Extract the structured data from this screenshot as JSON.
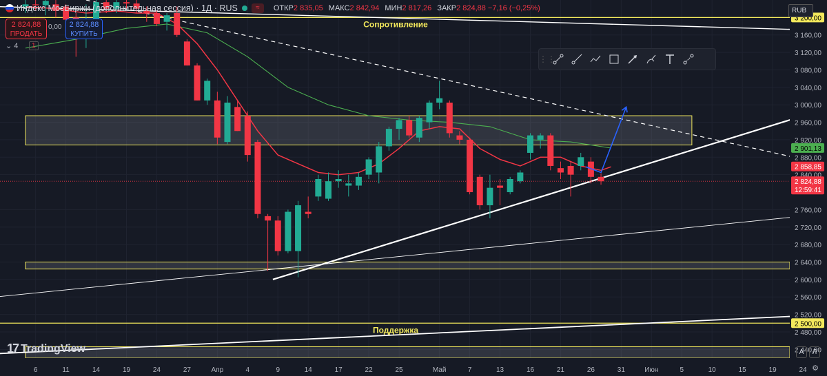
{
  "header": {
    "title": "Индекс МосБиржи (дополнительная сессия) · 1Д · RUS",
    "pill": "≈",
    "ohlc": [
      {
        "k": "ОТКР",
        "v": "2 835,05"
      },
      {
        "k": "МАКС",
        "v": "2 842,94"
      },
      {
        "k": "МИН",
        "v": "2 817,26"
      },
      {
        "k": "ЗАКР",
        "v": "2 824,88 −7,16 (−0,25%)"
      }
    ]
  },
  "trade": {
    "sell_price": "2 824,88",
    "sell_label": "ПРОДАТЬ",
    "spread": "0,00",
    "buy_price": "2 824,88",
    "buy_label": "КУПИТЬ"
  },
  "layout_count": "4",
  "layout_alert": "1",
  "currency": "RUB",
  "brand": "TradingView",
  "axis_buttons": {
    "auto": "A",
    "log": "Л"
  },
  "toolbar_icons": [
    "trend-line-icon",
    "ray-icon",
    "path-icon",
    "rectangle-icon",
    "arrow-icon",
    "brush-icon",
    "text-icon",
    "measure-icon"
  ],
  "colors": {
    "up": "#22ab94",
    "down": "#f23645",
    "ema_fast": "#f23645",
    "ema_slow": "#4caf50",
    "zone_line": "#f2e85c",
    "trend": "#ffffff",
    "arrow": "#2962ff"
  },
  "annotations": {
    "resistance": "Сопротивление",
    "support": "Поддержка"
  },
  "chart_data": {
    "type": "candlestick",
    "ylim": [
      2420,
      3240
    ],
    "y_ticks": [
      3160,
      3120,
      3080,
      3040,
      3000,
      2960,
      2920,
      2880,
      2840,
      2760,
      2720,
      2680,
      2640,
      2600,
      2560,
      2520,
      2480,
      2440
    ],
    "x_ticks": [
      {
        "label": "6",
        "i": 1
      },
      {
        "label": "11",
        "i": 4
      },
      {
        "label": "14",
        "i": 7
      },
      {
        "label": "19",
        "i": 10
      },
      {
        "label": "24",
        "i": 13
      },
      {
        "label": "27",
        "i": 16
      },
      {
        "label": "Апр",
        "i": 19
      },
      {
        "label": "4",
        "i": 22
      },
      {
        "label": "9",
        "i": 25
      },
      {
        "label": "14",
        "i": 28
      },
      {
        "label": "17",
        "i": 31
      },
      {
        "label": "22",
        "i": 34
      },
      {
        "label": "25",
        "i": 37
      },
      {
        "label": "Май",
        "i": 41
      },
      {
        "label": "7",
        "i": 44
      },
      {
        "label": "13",
        "i": 47
      },
      {
        "label": "16",
        "i": 50
      },
      {
        "label": "21",
        "i": 53
      },
      {
        "label": "26",
        "i": 56
      },
      {
        "label": "31",
        "i": 59
      },
      {
        "label": "Июн",
        "i": 62
      },
      {
        "label": "5",
        "i": 65
      },
      {
        "label": "10",
        "i": 68
      },
      {
        "label": "15",
        "i": 71
      },
      {
        "label": "19",
        "i": 74
      },
      {
        "label": "24",
        "i": 77
      }
    ],
    "candles": [
      {
        "o": 3225,
        "h": 3240,
        "l": 3210,
        "c": 3230
      },
      {
        "o": 3230,
        "h": 3240,
        "l": 3215,
        "c": 3228
      },
      {
        "o": 3228,
        "h": 3240,
        "l": 3205,
        "c": 3238
      },
      {
        "o": 3230,
        "h": 3240,
        "l": 3200,
        "c": 3215
      },
      {
        "o": 3225,
        "h": 3230,
        "l": 3185,
        "c": 3195
      },
      {
        "o": 3200,
        "h": 3210,
        "l": 3110,
        "c": 3180
      },
      {
        "o": 3170,
        "h": 3230,
        "l": 3130,
        "c": 3190
      },
      {
        "o": 3195,
        "h": 3240,
        "l": 3190,
        "c": 3235
      },
      {
        "o": 3235,
        "h": 3240,
        "l": 3210,
        "c": 3220
      },
      {
        "o": 3220,
        "h": 3240,
        "l": 3210,
        "c": 3235
      },
      {
        "o": 3235,
        "h": 3240,
        "l": 3220,
        "c": 3232
      },
      {
        "o": 3232,
        "h": 3240,
        "l": 3210,
        "c": 3220
      },
      {
        "o": 3215,
        "h": 3225,
        "l": 3190,
        "c": 3210
      },
      {
        "o": 3210,
        "h": 3215,
        "l": 3180,
        "c": 3185
      },
      {
        "o": 3190,
        "h": 3210,
        "l": 3170,
        "c": 3205
      },
      {
        "o": 3210,
        "h": 3225,
        "l": 3155,
        "c": 3160
      },
      {
        "o": 3145,
        "h": 3150,
        "l": 3090,
        "c": 3090
      },
      {
        "o": 3090,
        "h": 3095,
        "l": 3010,
        "c": 3010
      },
      {
        "o": 3010,
        "h": 3060,
        "l": 3000,
        "c": 3055
      },
      {
        "o": 3010,
        "h": 3030,
        "l": 2910,
        "c": 2925
      },
      {
        "o": 2915,
        "h": 3020,
        "l": 2910,
        "c": 3005
      },
      {
        "o": 2995,
        "h": 3010,
        "l": 2940,
        "c": 2940
      },
      {
        "o": 2975,
        "h": 2985,
        "l": 2870,
        "c": 2885
      },
      {
        "o": 2915,
        "h": 2920,
        "l": 2740,
        "c": 2750
      },
      {
        "o": 2745,
        "h": 2750,
        "l": 2620,
        "c": 2735
      },
      {
        "o": 2735,
        "h": 2745,
        "l": 2655,
        "c": 2665
      },
      {
        "o": 2665,
        "h": 2760,
        "l": 2660,
        "c": 2755
      },
      {
        "o": 2665,
        "h": 2780,
        "l": 2605,
        "c": 2770
      },
      {
        "o": 2755,
        "h": 2790,
        "l": 2740,
        "c": 2750
      },
      {
        "o": 2790,
        "h": 2840,
        "l": 2780,
        "c": 2830
      },
      {
        "o": 2785,
        "h": 2845,
        "l": 2780,
        "c": 2825
      },
      {
        "o": 2825,
        "h": 2850,
        "l": 2810,
        "c": 2830
      },
      {
        "o": 2815,
        "h": 2840,
        "l": 2790,
        "c": 2820
      },
      {
        "o": 2815,
        "h": 2845,
        "l": 2805,
        "c": 2835
      },
      {
        "o": 2840,
        "h": 2880,
        "l": 2830,
        "c": 2875
      },
      {
        "o": 2845,
        "h": 2915,
        "l": 2820,
        "c": 2905
      },
      {
        "o": 2905,
        "h": 2950,
        "l": 2895,
        "c": 2945
      },
      {
        "o": 2945,
        "h": 2970,
        "l": 2920,
        "c": 2965
      },
      {
        "o": 2965,
        "h": 2975,
        "l": 2925,
        "c": 2930
      },
      {
        "o": 2925,
        "h": 2975,
        "l": 2915,
        "c": 2970
      },
      {
        "o": 2960,
        "h": 3010,
        "l": 2945,
        "c": 3005
      },
      {
        "o": 3005,
        "h": 3055,
        "l": 2990,
        "c": 3015
      },
      {
        "o": 3005,
        "h": 3010,
        "l": 2925,
        "c": 2935
      },
      {
        "o": 2930,
        "h": 2940,
        "l": 2910,
        "c": 2920
      },
      {
        "o": 2920,
        "h": 2925,
        "l": 2795,
        "c": 2800
      },
      {
        "o": 2835,
        "h": 2840,
        "l": 2760,
        "c": 2770
      },
      {
        "o": 2770,
        "h": 2840,
        "l": 2740,
        "c": 2810
      },
      {
        "o": 2815,
        "h": 2830,
        "l": 2770,
        "c": 2810
      },
      {
        "o": 2800,
        "h": 2835,
        "l": 2795,
        "c": 2830
      },
      {
        "o": 2825,
        "h": 2850,
        "l": 2820,
        "c": 2845
      },
      {
        "o": 2890,
        "h": 2935,
        "l": 2875,
        "c": 2930
      },
      {
        "o": 2920,
        "h": 2935,
        "l": 2900,
        "c": 2930
      },
      {
        "o": 2930,
        "h": 2935,
        "l": 2850,
        "c": 2860
      },
      {
        "o": 2855,
        "h": 2870,
        "l": 2830,
        "c": 2845
      },
      {
        "o": 2860,
        "h": 2870,
        "l": 2790,
        "c": 2840
      },
      {
        "o": 2860,
        "h": 2890,
        "l": 2850,
        "c": 2880
      },
      {
        "o": 2870,
        "h": 2880,
        "l": 2820,
        "c": 2835
      },
      {
        "o": 2835,
        "h": 2843,
        "l": 2817,
        "c": 2825
      }
    ],
    "ema_fast": [
      [
        0,
        3225
      ],
      [
        3,
        3220
      ],
      [
        6,
        3210
      ],
      [
        9,
        3215
      ],
      [
        11,
        3210
      ],
      [
        13,
        3210
      ],
      [
        15,
        3185
      ],
      [
        17,
        3140
      ],
      [
        19,
        3080
      ],
      [
        21,
        3010
      ],
      [
        23,
        2940
      ],
      [
        25,
        2885
      ],
      [
        27,
        2865
      ],
      [
        29,
        2845
      ],
      [
        31,
        2840
      ],
      [
        33,
        2845
      ],
      [
        35,
        2865
      ],
      [
        37,
        2900
      ],
      [
        39,
        2940
      ],
      [
        41,
        2950
      ],
      [
        43,
        2945
      ],
      [
        45,
        2900
      ],
      [
        47,
        2875
      ],
      [
        49,
        2860
      ],
      [
        51,
        2880
      ],
      [
        53,
        2880
      ],
      [
        55,
        2860
      ],
      [
        57,
        2850
      ],
      [
        58,
        2858
      ]
    ],
    "ema_slow": [
      [
        0,
        3130
      ],
      [
        5,
        3150
      ],
      [
        10,
        3175
      ],
      [
        14,
        3185
      ],
      [
        18,
        3165
      ],
      [
        22,
        3110
      ],
      [
        26,
        3040
      ],
      [
        30,
        3000
      ],
      [
        34,
        2975
      ],
      [
        38,
        2965
      ],
      [
        42,
        2960
      ],
      [
        46,
        2950
      ],
      [
        50,
        2920
      ],
      [
        54,
        2915
      ],
      [
        58,
        2901
      ]
    ],
    "price_labels": [
      {
        "value": 3200,
        "text": "3 200,00",
        "bg": "#f2e85c",
        "fg": "#000"
      },
      {
        "value": 2901.13,
        "text": "2 901,13",
        "bg": "#4caf50",
        "fg": "#000"
      },
      {
        "value": 2858.85,
        "text": "2 858,85",
        "bg": "#f23645",
        "fg": "#fff"
      },
      {
        "value": 2824.88,
        "text": "2 824,88",
        "bg": "#f23645",
        "fg": "#fff",
        "sub": "12:59:41"
      },
      {
        "value": 2500,
        "text": "2 500,00",
        "bg": "#f2e85c",
        "fg": "#000"
      }
    ],
    "zones": [
      {
        "from": 2908,
        "to": 2975,
        "i0": 0,
        "i1": 66
      },
      {
        "from": 2624,
        "to": 2640,
        "i0": 0,
        "i1": 80
      },
      {
        "from": 2420,
        "to": 2446,
        "i0": 0,
        "i1": 80
      }
    ],
    "hlines": [
      {
        "value": 3200
      },
      {
        "value": 2500
      }
    ],
    "trendlines": [
      {
        "x1": 24.5,
        "y1": 2600,
        "x2": 80,
        "y2": 2996,
        "w": 2.2
      },
      {
        "x1": -3,
        "y1": 2560,
        "x2": 80,
        "y2": 2752,
        "w": 0.9
      },
      {
        "x1": -3,
        "y1": 2430,
        "x2": 80,
        "y2": 2520,
        "w": 1.8
      },
      {
        "x1": -3,
        "y1": 3225,
        "x2": 80,
        "y2": 3170,
        "w": 1.4
      }
    ],
    "dashed": [
      {
        "x1": 6,
        "y1": 3240,
        "x2": 80,
        "y2": 2860
      }
    ],
    "arrow_path": [
      [
        55.5,
        2858
      ],
      [
        57,
        2845
      ],
      [
        59.5,
        2995
      ]
    ]
  }
}
